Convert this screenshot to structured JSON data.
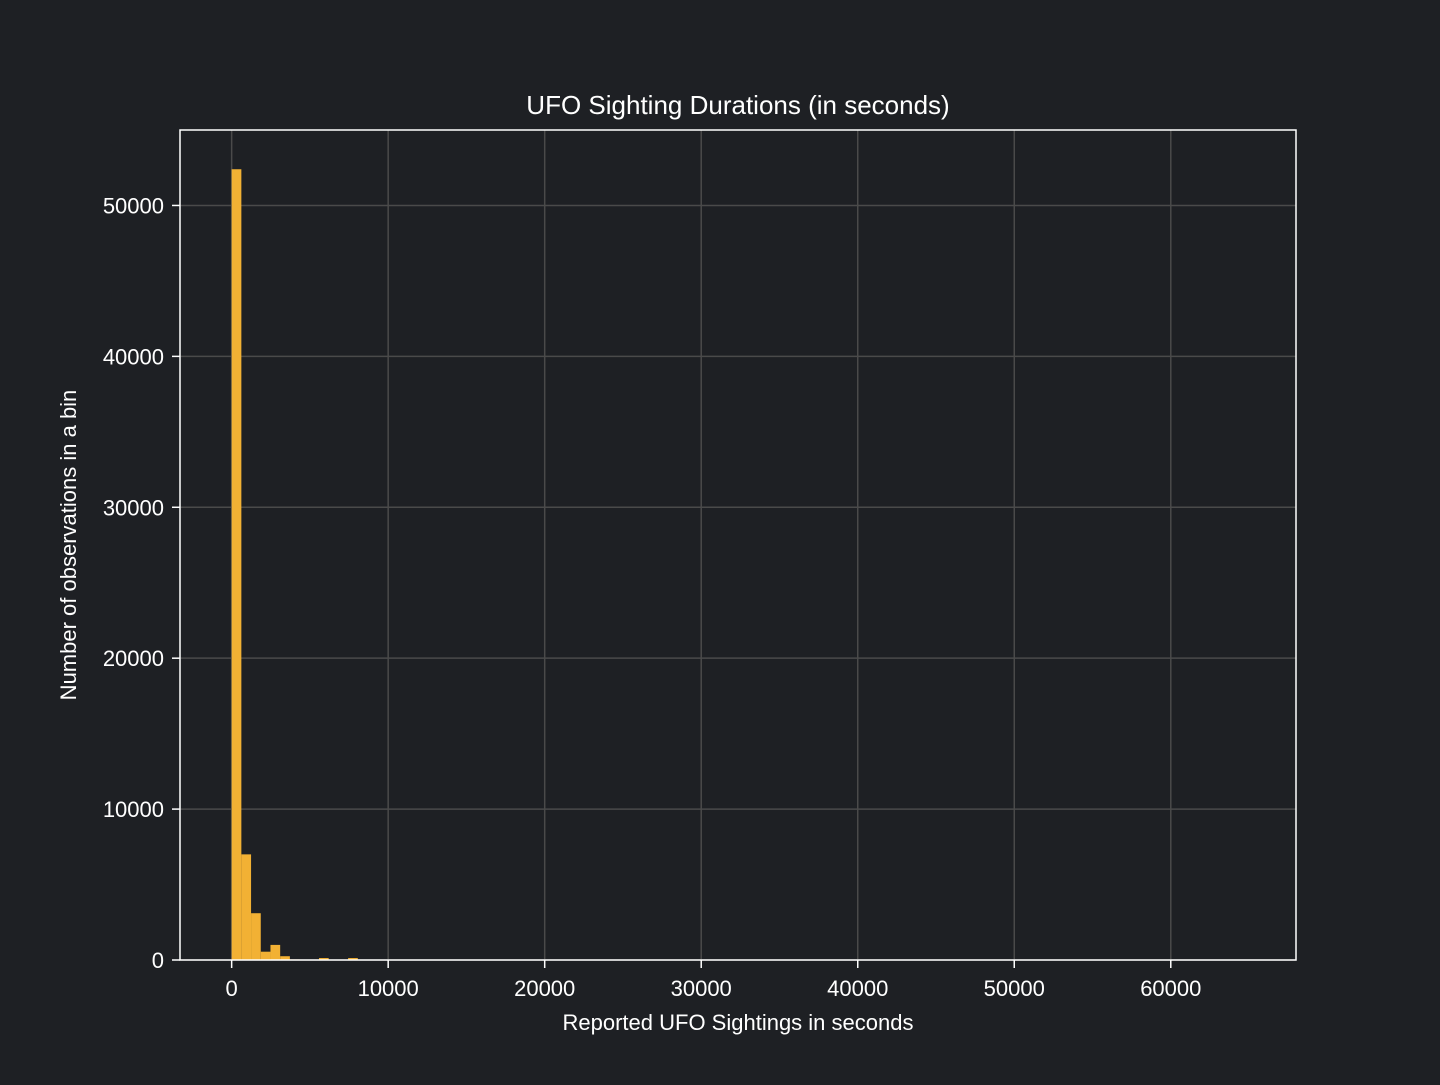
{
  "chart_data": {
    "type": "bar",
    "title": "UFO Sighting Durations (in seconds)",
    "xlabel": "Reported UFO Sightings in seconds",
    "ylabel": "Number of observations in a bin",
    "xlim": [
      -3300,
      68000
    ],
    "ylim": [
      0,
      55000
    ],
    "xticks": [
      0,
      10000,
      20000,
      30000,
      40000,
      50000,
      60000
    ],
    "yticks": [
      0,
      10000,
      20000,
      30000,
      40000,
      50000
    ],
    "grid": true,
    "bin_width": 620,
    "bins": [
      {
        "x": 0,
        "count": 52400
      },
      {
        "x": 620,
        "count": 7000
      },
      {
        "x": 1240,
        "count": 3100
      },
      {
        "x": 1860,
        "count": 550
      },
      {
        "x": 2480,
        "count": 1000
      },
      {
        "x": 3100,
        "count": 250
      },
      {
        "x": 3720,
        "count": 40
      },
      {
        "x": 4340,
        "count": 20
      },
      {
        "x": 4960,
        "count": 15
      },
      {
        "x": 5580,
        "count": 130
      },
      {
        "x": 6200,
        "count": 10
      },
      {
        "x": 6820,
        "count": 10
      },
      {
        "x": 7440,
        "count": 130
      },
      {
        "x": 8060,
        "count": 10
      }
    ],
    "colors": {
      "background": "#1e2024",
      "bar": "#f2b134",
      "grid": "#4a4a4a",
      "axes": "#ffffff",
      "text": "#ffffff"
    }
  }
}
